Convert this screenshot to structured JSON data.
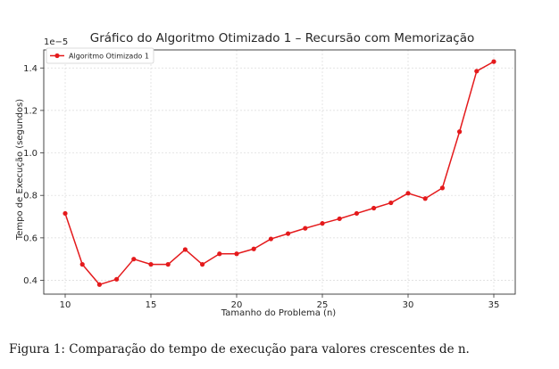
{
  "figure_caption": "Figura 1: Comparação do tempo de execução para valores crescentes de n.",
  "chart_data": {
    "type": "line",
    "title": "Gráfico do Algoritmo Otimizado 1 – Recursão com Memorização",
    "xlabel": "Tamanho do Problema (n)",
    "ylabel": "Tempo de Execução (segundos)",
    "y_offset_label": "1e−5",
    "xlim": [
      8.75,
      36.25
    ],
    "ylim": [
      0.335,
      1.485
    ],
    "x_ticks": [
      10,
      15,
      20,
      25,
      30,
      35
    ],
    "x_tick_labels": [
      "10",
      "15",
      "20",
      "25",
      "30",
      "35"
    ],
    "y_ticks": [
      0.4,
      0.6,
      0.8,
      1.0,
      1.2,
      1.4
    ],
    "y_tick_labels": [
      "0.4",
      "0.6",
      "0.8",
      "1.0",
      "1.2",
      "1.4"
    ],
    "grid": true,
    "legend_position": "top-left",
    "line_color": "#e41a1c",
    "series": [
      {
        "name": "Algoritmo Otimizado 1",
        "x": [
          10,
          11,
          12,
          13,
          14,
          15,
          16,
          17,
          18,
          19,
          20,
          21,
          22,
          23,
          24,
          25,
          26,
          27,
          28,
          29,
          30,
          31,
          32,
          33,
          34,
          35
        ],
        "y": [
          0.715,
          0.475,
          0.38,
          0.405,
          0.5,
          0.475,
          0.475,
          0.545,
          0.475,
          0.525,
          0.525,
          0.548,
          0.595,
          0.62,
          0.645,
          0.668,
          0.69,
          0.715,
          0.74,
          0.765,
          0.81,
          0.785,
          0.835,
          1.1,
          1.385,
          1.43
        ]
      }
    ]
  }
}
